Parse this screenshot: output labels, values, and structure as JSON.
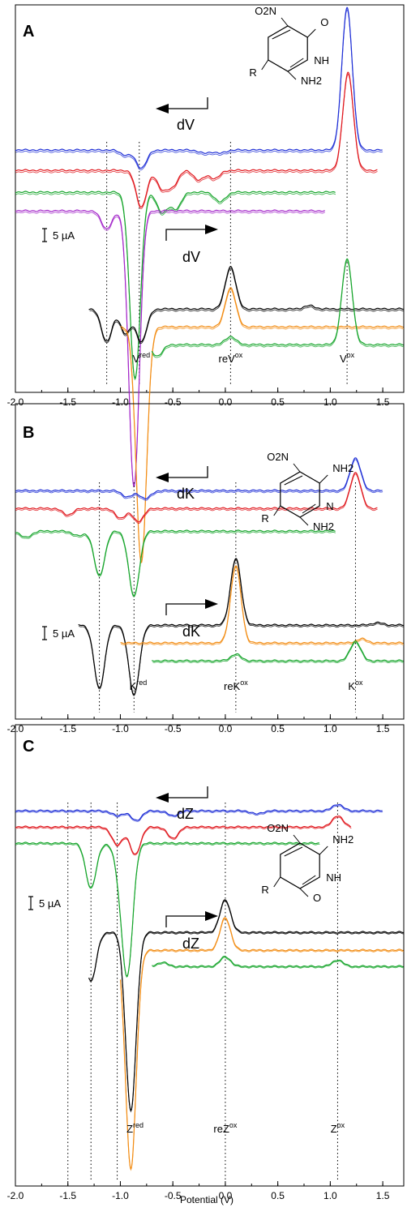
{
  "figure": {
    "xlabel": "Potential (V)",
    "scalebar_label": "5 µA",
    "xlim": [
      -2.0,
      1.7
    ],
    "xticks": [
      "-2.0",
      "-1.5",
      "-1.0",
      "-0.5",
      "0.0",
      "0.5",
      "1.0",
      "1.5"
    ]
  },
  "colors": {
    "blue": "#1f2fd6",
    "red": "#e0181e",
    "green": "#17a52c",
    "purple": "#a326c9",
    "black": "#000000",
    "orange": "#f28c13"
  },
  "chart_data": [
    {
      "type": "line",
      "panel": "A",
      "xlim": [
        -2.0,
        1.7
      ],
      "scan_labels": [
        "dV",
        "dV"
      ],
      "peak_labels": [
        {
          "main": "V",
          "sup": "red",
          "x": -0.8
        },
        {
          "main": "reV",
          "sup": "ox",
          "x": 0.05
        },
        {
          "main": "V",
          "sup": "ox",
          "x": 1.16
        }
      ],
      "guides": [
        -1.13,
        -0.82,
        0.05,
        1.16
      ],
      "molecule": {
        "subst": [
          "O2N",
          "O",
          "NH",
          "R",
          "NH2"
        ]
      },
      "series": [
        {
          "color": "blue",
          "start": 1.5,
          "end": -2.0,
          "baseline": 0,
          "peaks": [
            [
              1.16,
              175
            ],
            [
              -0.8,
              -22
            ],
            [
              -0.95,
              -6
            ],
            [
              -0.2,
              -4
            ],
            [
              -0.05,
              -4
            ]
          ]
        },
        {
          "color": "red",
          "start": 1.45,
          "end": -2.0,
          "baseline": 25,
          "peaks": [
            [
              1.17,
              120
            ],
            [
              -0.8,
              -45
            ],
            [
              -0.6,
              -22
            ],
            [
              -0.5,
              -18
            ],
            [
              -0.25,
              -12
            ],
            [
              -0.1,
              -10
            ]
          ]
        },
        {
          "color": "green",
          "start": 1.05,
          "end": -2.0,
          "baseline": 52,
          "peaks": [
            [
              -0.86,
              -230
            ],
            [
              -0.6,
              -25
            ],
            [
              -0.47,
              -20
            ],
            [
              -0.05,
              -12
            ]
          ]
        },
        {
          "color": "purple",
          "start": 0.95,
          "end": -2.0,
          "baseline": 75,
          "peaks": [
            [
              -1.13,
              -22
            ],
            [
              -0.87,
              -340
            ]
          ]
        },
        {
          "color": "black",
          "start": 1.7,
          "end": -1.3,
          "baseline": 196,
          "peaks": [
            [
              0.05,
              52
            ],
            [
              -1.13,
              -40
            ],
            [
              -0.95,
              -30
            ],
            [
              -0.8,
              -40
            ],
            [
              0.8,
              4
            ]
          ]
        },
        {
          "color": "orange",
          "start": 1.7,
          "end": -1.0,
          "baseline": 218,
          "peaks": [
            [
              0.05,
              48
            ],
            [
              -0.8,
              -290
            ]
          ]
        },
        {
          "color": "green",
          "start": 1.7,
          "end": -0.7,
          "baseline": 240,
          "peaks": [
            [
              1.16,
              105
            ],
            [
              0.05,
              10
            ],
            [
              -0.65,
              -14
            ]
          ]
        }
      ]
    },
    {
      "type": "line",
      "panel": "B",
      "xlim": [
        -2.0,
        1.7
      ],
      "scan_labels": [
        "dK",
        "dK"
      ],
      "peak_labels": [
        {
          "main": "K",
          "sup": "red",
          "x": -0.83
        },
        {
          "main": "reK",
          "sup": "ox",
          "x": 0.1
        },
        {
          "main": "K",
          "sup": "ox",
          "x": 1.24
        }
      ],
      "guides": [
        -1.2,
        -0.87,
        0.1,
        1.24
      ],
      "molecule": {
        "subst": [
          "O2N",
          "NH2",
          "N",
          "R",
          "NH2"
        ]
      },
      "series": [
        {
          "color": "blue",
          "start": 1.5,
          "end": -2.0,
          "baseline": 0,
          "peaks": [
            [
              1.24,
              40
            ],
            [
              -0.93,
              -8
            ],
            [
              -0.76,
              -10
            ]
          ]
        },
        {
          "color": "red",
          "start": 1.45,
          "end": -2.0,
          "baseline": 22,
          "peaks": [
            [
              1.24,
              44
            ],
            [
              -1.5,
              -8
            ],
            [
              -1.0,
              -12
            ],
            [
              -0.83,
              -16
            ]
          ]
        },
        {
          "color": "green",
          "start": 1.05,
          "end": -2.0,
          "baseline": 50,
          "peaks": [
            [
              -1.2,
              -55
            ],
            [
              -0.87,
              -80
            ],
            [
              -1.9,
              -8
            ],
            [
              -1.4,
              -6
            ]
          ]
        },
        {
          "color": "black",
          "start": 1.7,
          "end": -1.4,
          "baseline": 166,
          "peaks": [
            [
              0.1,
              82
            ],
            [
              -1.2,
              -78
            ],
            [
              -0.87,
              -86
            ],
            [
              1.45,
              3
            ]
          ]
        },
        {
          "color": "orange",
          "start": 1.7,
          "end": -1.0,
          "baseline": 188,
          "peaks": [
            [
              0.1,
              95
            ],
            [
              1.3,
              5
            ]
          ]
        },
        {
          "color": "green",
          "start": 1.7,
          "end": -0.7,
          "baseline": 210,
          "peaks": [
            [
              1.24,
              24
            ],
            [
              0.1,
              8
            ]
          ]
        }
      ]
    },
    {
      "type": "line",
      "panel": "C",
      "xlim": [
        -2.0,
        1.7
      ],
      "scan_labels": [
        "dZ",
        "dZ"
      ],
      "peak_labels": [
        {
          "main": "Z",
          "sup": "red",
          "x": -0.86
        },
        {
          "main": "reZ",
          "sup": "ox",
          "x": 0.0
        },
        {
          "main": "Z",
          "sup": "ox",
          "x": 1.07
        }
      ],
      "guides": [
        -1.5,
        -1.28,
        -1.03,
        0.0,
        1.07
      ],
      "molecule": {
        "subst": [
          "O2N",
          "NH2",
          "NH",
          "R",
          "O"
        ]
      },
      "series": [
        {
          "color": "blue",
          "start": 1.5,
          "end": -2.0,
          "baseline": 0,
          "peaks": [
            [
              1.07,
              8
            ],
            [
              -0.85,
              -12
            ],
            [
              -1.03,
              -6
            ],
            [
              -0.5,
              -6
            ],
            [
              0.3,
              -4
            ]
          ]
        },
        {
          "color": "red",
          "start": 1.2,
          "end": -2.0,
          "baseline": 20,
          "peaks": [
            [
              1.07,
              14
            ],
            [
              -1.03,
              -22
            ],
            [
              -0.86,
              -34
            ],
            [
              -0.5,
              -14
            ]
          ]
        },
        {
          "color": "green",
          "start": 0.9,
          "end": -2.0,
          "baseline": 40,
          "peaks": [
            [
              -1.28,
              -55
            ],
            [
              -1.0,
              -35
            ],
            [
              -0.93,
              -150
            ]
          ]
        },
        {
          "color": "black",
          "start": 1.7,
          "end": -1.3,
          "baseline": 150,
          "peaks": [
            [
              0.0,
              40
            ],
            [
              -1.28,
              -60
            ],
            [
              -0.9,
              -220
            ]
          ]
        },
        {
          "color": "orange",
          "start": 1.7,
          "end": -1.0,
          "baseline": 172,
          "peaks": [
            [
              0.0,
              40
            ],
            [
              -0.9,
              -270
            ]
          ]
        },
        {
          "color": "green",
          "start": 1.7,
          "end": -0.7,
          "baseline": 192,
          "peaks": [
            [
              0.0,
              12
            ],
            [
              1.07,
              8
            ],
            [
              -0.6,
              5
            ]
          ]
        }
      ]
    }
  ]
}
